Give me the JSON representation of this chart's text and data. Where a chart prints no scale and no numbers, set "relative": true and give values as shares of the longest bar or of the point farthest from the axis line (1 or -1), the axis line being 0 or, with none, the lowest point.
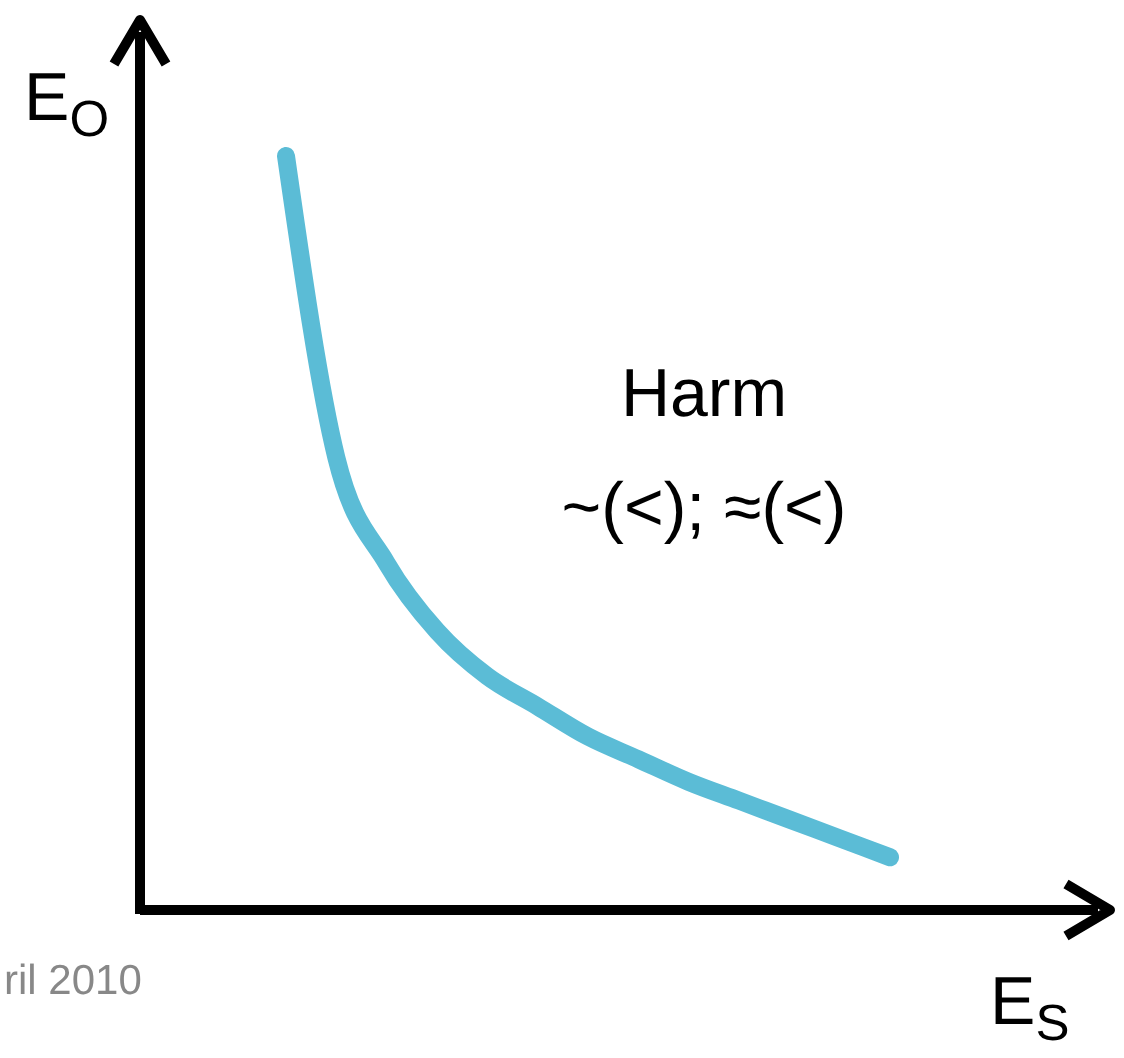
{
  "chart_data": {
    "type": "line",
    "relative": true,
    "xlabel": "E$_{S}$",
    "ylabel": "E$_{O}$",
    "categories": [
      null,
      null,
      null,
      null,
      null,
      null,
      null,
      null,
      null,
      null,
      null,
      null,
      null
    ],
    "series": [
      {
        "color": "#5bbcd6",
        "values": [
          1,
          0.6,
          0.46,
          0.37,
          0.31,
          0.27,
          0.23,
          0.2,
          0.17,
          0.145,
          0.12,
          0.095,
          0.07
        ]
      }
    ],
    "annotations": [
      "Harm",
      "~(<); ≈(<)",
      "ril 2010"
    ]
  }
}
